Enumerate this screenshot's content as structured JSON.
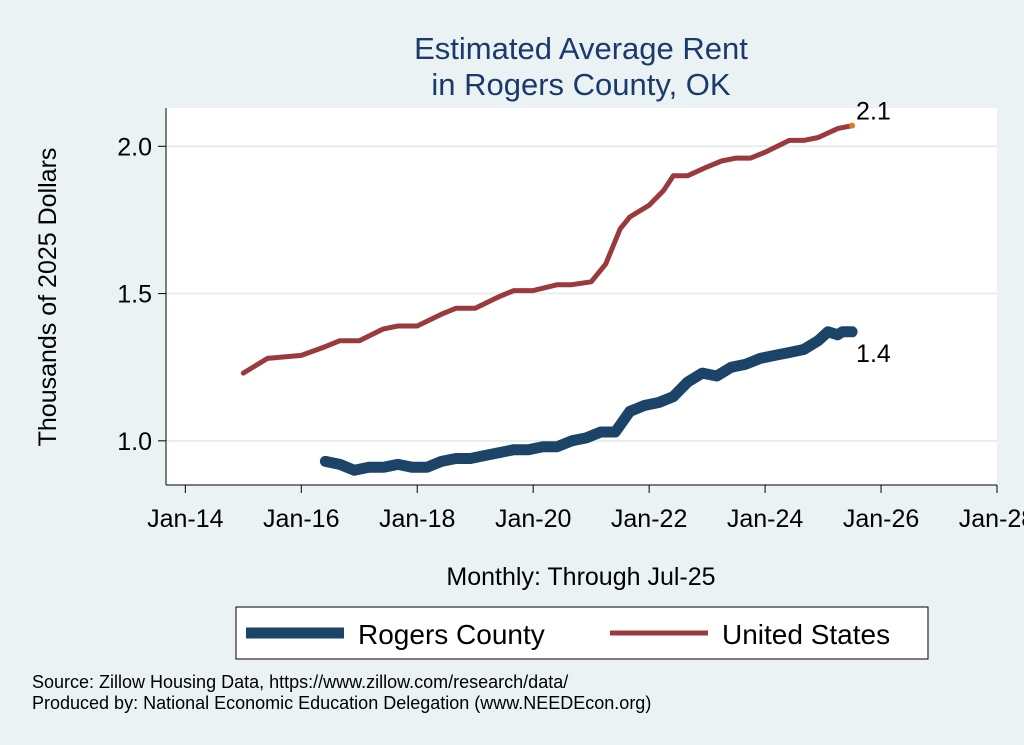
{
  "chart_data": {
    "type": "line",
    "title": [
      "Estimated Average Rent",
      "in Rogers County, OK"
    ],
    "ylabel": "Thousands of 2025 Dollars",
    "xlabel": "Monthly: Through Jul-25",
    "x_ticks": [
      "Jan-14",
      "Jan-16",
      "Jan-18",
      "Jan-20",
      "Jan-22",
      "Jan-24",
      "Jan-26",
      "Jan-28"
    ],
    "y_ticks": [
      "1.0",
      "1.5",
      "2.0"
    ],
    "xlim": [
      "2013-09",
      "2028-01"
    ],
    "ylim": [
      0.85,
      2.13
    ],
    "grid": true,
    "legend_position": "bottom",
    "series": [
      {
        "name": "Rogers County",
        "color": "#1c4468",
        "end_label": "1.4",
        "points": [
          [
            "2016-06",
            0.93
          ],
          [
            "2016-09",
            0.92
          ],
          [
            "2016-12",
            0.9
          ],
          [
            "2017-03",
            0.91
          ],
          [
            "2017-06",
            0.91
          ],
          [
            "2017-09",
            0.92
          ],
          [
            "2017-12",
            0.91
          ],
          [
            "2018-03",
            0.91
          ],
          [
            "2018-06",
            0.93
          ],
          [
            "2018-09",
            0.94
          ],
          [
            "2018-12",
            0.94
          ],
          [
            "2019-03",
            0.95
          ],
          [
            "2019-06",
            0.96
          ],
          [
            "2019-09",
            0.97
          ],
          [
            "2019-12",
            0.97
          ],
          [
            "2020-03",
            0.98
          ],
          [
            "2020-06",
            0.98
          ],
          [
            "2020-09",
            1.0
          ],
          [
            "2020-12",
            1.01
          ],
          [
            "2021-03",
            1.03
          ],
          [
            "2021-06",
            1.03
          ],
          [
            "2021-09",
            1.1
          ],
          [
            "2021-12",
            1.12
          ],
          [
            "2022-03",
            1.13
          ],
          [
            "2022-06",
            1.15
          ],
          [
            "2022-09",
            1.2
          ],
          [
            "2022-12",
            1.23
          ],
          [
            "2023-03",
            1.22
          ],
          [
            "2023-06",
            1.25
          ],
          [
            "2023-09",
            1.26
          ],
          [
            "2023-12",
            1.28
          ],
          [
            "2024-03",
            1.29
          ],
          [
            "2024-06",
            1.3
          ],
          [
            "2024-09",
            1.31
          ],
          [
            "2024-12",
            1.34
          ],
          [
            "2025-02",
            1.37
          ],
          [
            "2025-04",
            1.36
          ],
          [
            "2025-05",
            1.37
          ],
          [
            "2025-07",
            1.37
          ]
        ]
      },
      {
        "name": "United States",
        "color": "#9b3a3c",
        "end_label": "2.1",
        "points": [
          [
            "2015-01",
            1.23
          ],
          [
            "2015-06",
            1.28
          ],
          [
            "2016-01",
            1.29
          ],
          [
            "2016-06",
            1.32
          ],
          [
            "2016-09",
            1.34
          ],
          [
            "2017-01",
            1.34
          ],
          [
            "2017-06",
            1.38
          ],
          [
            "2017-09",
            1.39
          ],
          [
            "2018-01",
            1.39
          ],
          [
            "2018-06",
            1.43
          ],
          [
            "2018-09",
            1.45
          ],
          [
            "2019-01",
            1.45
          ],
          [
            "2019-06",
            1.49
          ],
          [
            "2019-09",
            1.51
          ],
          [
            "2020-01",
            1.51
          ],
          [
            "2020-06",
            1.53
          ],
          [
            "2020-09",
            1.53
          ],
          [
            "2021-01",
            1.54
          ],
          [
            "2021-04",
            1.6
          ],
          [
            "2021-07",
            1.72
          ],
          [
            "2021-09",
            1.76
          ],
          [
            "2022-01",
            1.8
          ],
          [
            "2022-04",
            1.85
          ],
          [
            "2022-06",
            1.9
          ],
          [
            "2022-09",
            1.9
          ],
          [
            "2023-01",
            1.93
          ],
          [
            "2023-04",
            1.95
          ],
          [
            "2023-07",
            1.96
          ],
          [
            "2023-10",
            1.96
          ],
          [
            "2024-01",
            1.98
          ],
          [
            "2024-06",
            2.02
          ],
          [
            "2024-09",
            2.02
          ],
          [
            "2024-12",
            2.03
          ],
          [
            "2025-04",
            2.06
          ],
          [
            "2025-07",
            2.07
          ]
        ]
      }
    ]
  },
  "notes": {
    "source": "Source: Zillow Housing Data, https://www.zillow.com/research/data/",
    "producer": "Produced by: National Economic Education Delegation (www.NEEDEcon.org)"
  }
}
